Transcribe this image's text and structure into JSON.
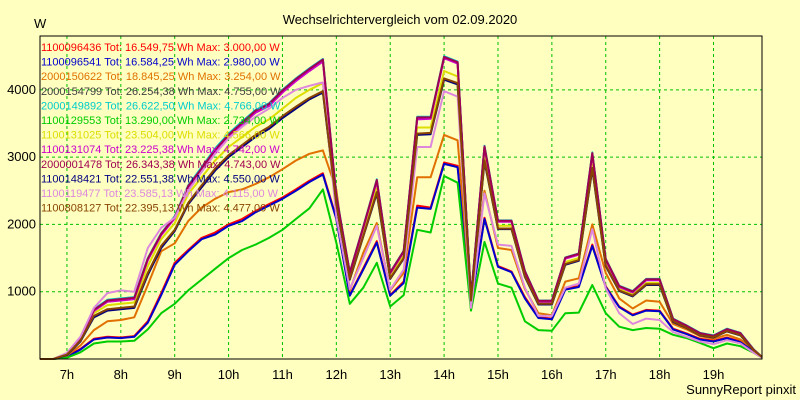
{
  "chart_data": {
    "type": "line",
    "title": "Wechselrichtervergleich vom 02.09.2020",
    "ylabel": "W",
    "credit": "SunnyReport pinxit",
    "ylim": [
      0,
      4800
    ],
    "xlim": [
      6.5,
      19.9
    ],
    "yticks": [
      1000,
      2000,
      3000,
      4000
    ],
    "xticks": [
      7,
      8,
      9,
      10,
      11,
      12,
      13,
      14,
      15,
      16,
      17,
      18,
      19
    ],
    "xtick_labels": [
      "7h",
      "8h",
      "9h",
      "10h",
      "11h",
      "12h",
      "13h",
      "14h",
      "15h",
      "16h",
      "17h",
      "18h",
      "19h"
    ],
    "grid": true,
    "legend_position": "top-left",
    "x": [
      6.5,
      6.75,
      7.0,
      7.25,
      7.5,
      7.75,
      8.0,
      8.25,
      8.5,
      8.75,
      9.0,
      9.25,
      9.5,
      9.75,
      10.0,
      10.25,
      10.5,
      10.75,
      11.0,
      11.25,
      11.5,
      11.75,
      12.0,
      12.25,
      12.5,
      12.75,
      13.0,
      13.25,
      13.5,
      13.75,
      14.0,
      14.25,
      14.5,
      14.75,
      15.0,
      15.25,
      15.5,
      15.75,
      16.0,
      16.25,
      16.5,
      16.75,
      17.0,
      17.25,
      17.5,
      17.75,
      18.0,
      18.25,
      18.5,
      18.75,
      19.0,
      19.25,
      19.5,
      19.75,
      19.9
    ],
    "series": [
      {
        "name": "1100096436 Tot: 16.549,75 Wh Max: 3.000,00 W",
        "color": "#ff0000",
        "values": [
          0,
          0,
          40,
          150,
          300,
          330,
          320,
          340,
          560,
          980,
          1430,
          1620,
          1800,
          1880,
          2000,
          2080,
          2200,
          2300,
          2400,
          2520,
          2650,
          2760,
          2100,
          950,
          1350,
          1750,
          950,
          1150,
          2280,
          2250,
          2920,
          2870,
          820,
          2100,
          1380,
          1300,
          920,
          620,
          600,
          1050,
          1080,
          1700,
          1080,
          780,
          660,
          730,
          720,
          450,
          380,
          300,
          270,
          320,
          260,
          120,
          30
        ]
      },
      {
        "name": "1100096541 Tot: 16.584,25 Wh Max: 2.980,00 W",
        "color": "#0000cc",
        "values": [
          0,
          0,
          30,
          140,
          290,
          320,
          310,
          330,
          540,
          950,
          1400,
          1600,
          1780,
          1850,
          1980,
          2050,
          2180,
          2280,
          2380,
          2500,
          2630,
          2740,
          2080,
          940,
          1330,
          1730,
          940,
          1130,
          2250,
          2230,
          2900,
          2850,
          810,
          2080,
          1370,
          1290,
          900,
          610,
          590,
          1030,
          1070,
          1680,
          1070,
          770,
          650,
          720,
          710,
          440,
          370,
          290,
          260,
          310,
          250,
          110,
          25
        ]
      },
      {
        "name": "2000150622 Tot: 18.845,25 Wh Max: 3.254,00 W",
        "color": "#e07000",
        "values": [
          0,
          0,
          50,
          200,
          430,
          560,
          580,
          620,
          1100,
          1600,
          1720,
          2050,
          2250,
          2380,
          2480,
          2520,
          2600,
          2700,
          2820,
          2950,
          3050,
          3100,
          2520,
          1020,
          1580,
          2020,
          1020,
          1280,
          2700,
          2700,
          3330,
          3250,
          880,
          2500,
          1650,
          1620,
          1040,
          680,
          650,
          1150,
          1200,
          2000,
          1280,
          900,
          750,
          870,
          850,
          520,
          440,
          340,
          300,
          360,
          290,
          140,
          30
        ]
      },
      {
        "name": "2000154799 Tot: 26.254,38 Wh Max: 4.755,00 W",
        "color": "#404040",
        "values": [
          0,
          0,
          80,
          310,
          720,
          860,
          880,
          900,
          1480,
          1850,
          2100,
          2560,
          2820,
          3100,
          3320,
          3500,
          3680,
          3780,
          3980,
          4150,
          4300,
          4440,
          2420,
          1280,
          1960,
          2650,
          1280,
          1600,
          3580,
          3580,
          4480,
          4400,
          920,
          3150,
          2050,
          2050,
          1300,
          860,
          860,
          1500,
          1560,
          3050,
          1480,
          1080,
          1000,
          1180,
          1180,
          590,
          490,
          380,
          340,
          440,
          380,
          130,
          30
        ]
      },
      {
        "name": "2000149892 Tot: 26.622,50 Wh Max: 4.766,00 W",
        "color": "#00cccc",
        "values": [
          0,
          0,
          85,
          320,
          740,
          880,
          900,
          920,
          1500,
          1870,
          2120,
          2580,
          2850,
          3130,
          3350,
          3530,
          3700,
          3800,
          4000,
          4170,
          4320,
          4460,
          2440,
          1290,
          1970,
          2670,
          1290,
          1610,
          3600,
          3600,
          4500,
          4420,
          930,
          3170,
          2060,
          2060,
          1310,
          870,
          870,
          1510,
          1570,
          3070,
          1490,
          1090,
          1010,
          1190,
          1190,
          600,
          500,
          390,
          350,
          450,
          390,
          140,
          30
        ]
      },
      {
        "name": "1100129553 Tot: 13.290,00 Wh Max: 2.734,00 W",
        "color": "#00cc00",
        "values": [
          0,
          0,
          20,
          100,
          230,
          260,
          260,
          270,
          440,
          680,
          820,
          1020,
          1180,
          1340,
          1500,
          1620,
          1700,
          1800,
          1920,
          2080,
          2240,
          2520,
          1730,
          820,
          1060,
          1430,
          780,
          950,
          1920,
          1880,
          2720,
          2620,
          720,
          1740,
          1120,
          1060,
          560,
          430,
          420,
          680,
          690,
          1100,
          680,
          480,
          430,
          460,
          450,
          360,
          310,
          240,
          160,
          230,
          190,
          90,
          20
        ]
      },
      {
        "name": "1100131025 Tot: 23.504,00 Wh Max: 4.566,00 W",
        "color": "#dddd00",
        "values": [
          0,
          0,
          70,
          290,
          680,
          800,
          820,
          840,
          1380,
          1780,
          2020,
          2450,
          2700,
          2950,
          3150,
          3300,
          3450,
          3560,
          3720,
          3880,
          4000,
          4100,
          2350,
          1220,
          1880,
          2540,
          1230,
          1540,
          3440,
          3440,
          4280,
          4200,
          880,
          3010,
          1980,
          1980,
          1250,
          830,
          830,
          1440,
          1500,
          2900,
          1420,
          1040,
          960,
          1130,
          1130,
          570,
          470,
          360,
          330,
          420,
          360,
          120,
          30
        ]
      },
      {
        "name": "1100131074 Tot: 23.225,38 Wh Max: 4.742,00 W",
        "color": "#cc00cc",
        "values": [
          0,
          0,
          78,
          305,
          715,
          850,
          870,
          890,
          1470,
          1840,
          2090,
          2550,
          2810,
          3090,
          3300,
          3480,
          3660,
          3760,
          3960,
          4130,
          4280,
          4420,
          2400,
          1270,
          1950,
          2640,
          1270,
          1590,
          3560,
          3570,
          4470,
          4390,
          910,
          3140,
          2040,
          2040,
          1290,
          850,
          850,
          1490,
          1550,
          3040,
          1470,
          1070,
          990,
          1170,
          1170,
          580,
          480,
          370,
          340,
          430,
          370,
          130,
          30
        ]
      },
      {
        "name": "2000001478 Tot: 26.343,38 Wh Max: 4.743,00 W",
        "color": "#a00050",
        "values": [
          0,
          0,
          82,
          315,
          730,
          870,
          890,
          910,
          1490,
          1860,
          2110,
          2570,
          2830,
          3110,
          3330,
          3510,
          3690,
          3790,
          3990,
          4160,
          4310,
          4450,
          2430,
          1285,
          1965,
          2660,
          1285,
          1605,
          3590,
          3590,
          4490,
          4410,
          925,
          3160,
          2055,
          2055,
          1305,
          865,
          865,
          1505,
          1565,
          3060,
          1485,
          1085,
          1005,
          1185,
          1185,
          595,
          495,
          385,
          345,
          445,
          385,
          135,
          30
        ]
      },
      {
        "name": "1100148421 Tot: 22.551,38 Wh Max: 4.550,00 W",
        "color": "#000080",
        "values": [
          0,
          0,
          60,
          260,
          620,
          720,
          740,
          760,
          1250,
          1650,
          1900,
          2300,
          2550,
          2800,
          3000,
          3150,
          3300,
          3420,
          3580,
          3720,
          3860,
          3960,
          2280,
          1180,
          1820,
          2460,
          1190,
          1490,
          3330,
          3340,
          4150,
          4080,
          860,
          2930,
          1930,
          1930,
          1220,
          810,
          810,
          1400,
          1460,
          2820,
          1380,
          1010,
          930,
          1100,
          1100,
          550,
          460,
          350,
          320,
          410,
          350,
          120,
          30
        ]
      },
      {
        "name": "1100119477 Tot: 23.585,13 Wh Max: 4.115,00 W",
        "color": "#dd88dd",
        "values": [
          0,
          0,
          90,
          330,
          760,
          980,
          1020,
          1000,
          1650,
          1950,
          2100,
          2500,
          2780,
          3050,
          3280,
          3450,
          3600,
          3720,
          3880,
          4000,
          4060,
          4110,
          2120,
          1040,
          1500,
          1980,
          1030,
          1330,
          3150,
          3150,
          3980,
          3900,
          760,
          2460,
          1700,
          1680,
          1060,
          640,
          640,
          1060,
          1120,
          1930,
          1050,
          680,
          520,
          600,
          580,
          400,
          330,
          260,
          220,
          280,
          230,
          90,
          20
        ]
      },
      {
        "name": "1100808127 Tot: 22.395,13 Wh Max: 4.477,00 W",
        "color": "#884400",
        "values": [
          0,
          0,
          65,
          270,
          640,
          740,
          760,
          780,
          1280,
          1680,
          1920,
          2320,
          2580,
          2830,
          3030,
          3180,
          3330,
          3450,
          3610,
          3750,
          3880,
          3980,
          2300,
          1190,
          1830,
          2480,
          1200,
          1500,
          3350,
          3360,
          4170,
          4100,
          870,
          2950,
          1940,
          1940,
          1230,
          820,
          820,
          1410,
          1470,
          2840,
          1390,
          1020,
          940,
          1110,
          1110,
          560,
          465,
          355,
          325,
          415,
          355,
          125,
          30
        ]
      }
    ]
  }
}
